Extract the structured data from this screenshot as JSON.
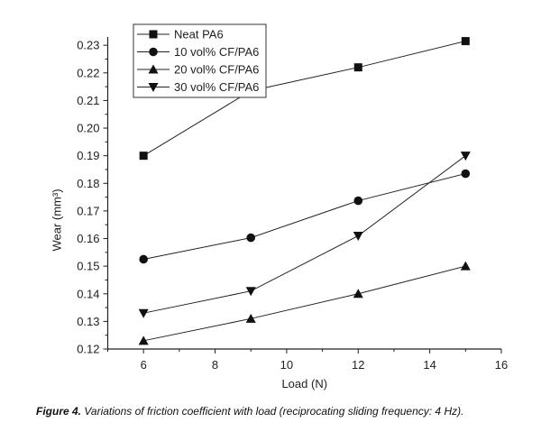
{
  "chart_data": {
    "type": "line",
    "title": "",
    "xlabel": "Load (N)",
    "ylabel": "Wear (mm³)",
    "xlim": [
      5,
      16
    ],
    "ylim": [
      0.12,
      0.233
    ],
    "xticks": [
      6,
      8,
      10,
      12,
      14,
      16
    ],
    "yticks": [
      0.12,
      0.13,
      0.14,
      0.15,
      0.16,
      0.17,
      0.18,
      0.19,
      0.2,
      0.21,
      0.22,
      0.23
    ],
    "ytick_labels": [
      "0.12",
      "0.13",
      "0.14",
      "0.15",
      "0.16",
      "0.17",
      "0.18",
      "0.19",
      "0.20",
      "0.21",
      "0.22",
      "0.23"
    ],
    "grid": false,
    "legend_position": "top-left",
    "x": [
      6,
      9,
      12,
      15
    ],
    "series": [
      {
        "name": "Neat PA6",
        "marker": "square",
        "values": [
          0.19,
          0.2135,
          0.222,
          0.2315
        ]
      },
      {
        "name": "10 vol% CF/PA6",
        "marker": "circle",
        "values": [
          0.1525,
          0.1603,
          0.1737,
          0.1835
        ]
      },
      {
        "name": "20 vol% CF/PA6",
        "marker": "triangle-up",
        "values": [
          0.123,
          0.131,
          0.14,
          0.15
        ]
      },
      {
        "name": "30 vol% CF/PA6",
        "marker": "triangle-down",
        "values": [
          0.133,
          0.141,
          0.161,
          0.19
        ]
      }
    ]
  },
  "caption": {
    "label": "Figure 4.",
    "text": " Variations of friction coefficient with load (reciprocating sliding frequency: 4 Hz)."
  }
}
